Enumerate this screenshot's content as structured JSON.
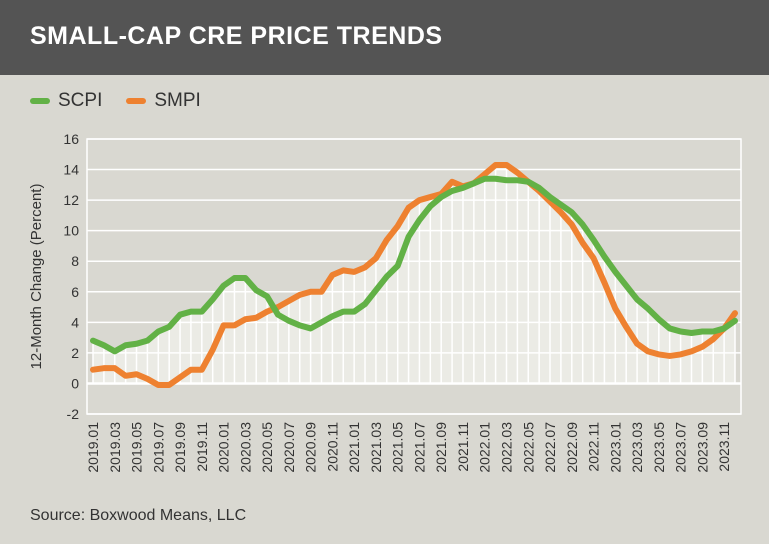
{
  "header": {
    "title": "SMALL-CAP CRE PRICE TRENDS"
  },
  "source": "Source: Boxwood Means, LLC",
  "chart_data": {
    "type": "line",
    "title": "SMALL-CAP CRE PRICE TRENDS",
    "xlabel": "",
    "ylabel": "12-Month Change (Percent)",
    "ylim": [
      -2,
      16
    ],
    "yticks": [
      -2,
      0,
      2,
      4,
      6,
      8,
      10,
      12,
      14,
      16
    ],
    "grid": true,
    "legend": "top-left",
    "x": [
      "2019.01",
      "2019.02",
      "2019.03",
      "2019.04",
      "2019.05",
      "2019.06",
      "2019.07",
      "2019.08",
      "2019.09",
      "2019.10",
      "2019.11",
      "2019.12",
      "2020.01",
      "2020.02",
      "2020.03",
      "2020.04",
      "2020.05",
      "2020.06",
      "2020.07",
      "2020.08",
      "2020.09",
      "2020.10",
      "2020.11",
      "2020.12",
      "2021.01",
      "2021.02",
      "2021.03",
      "2021.04",
      "2021.05",
      "2021.06",
      "2021.07",
      "2021.08",
      "2021.09",
      "2021.10",
      "2021.11",
      "2021.12",
      "2022.01",
      "2022.02",
      "2022.03",
      "2022.04",
      "2022.05",
      "2022.06",
      "2022.07",
      "2022.08",
      "2022.09",
      "2022.10",
      "2022.11",
      "2022.12",
      "2023.01",
      "2023.02",
      "2023.03",
      "2023.04",
      "2023.05",
      "2023.06",
      "2023.07",
      "2023.08",
      "2023.09",
      "2023.10",
      "2023.11",
      "2023.12"
    ],
    "series": [
      {
        "name": "SCPI",
        "color": "#62b146",
        "values": [
          2.8,
          2.5,
          2.1,
          2.5,
          2.6,
          2.8,
          3.4,
          3.7,
          4.5,
          4.7,
          4.7,
          5.5,
          6.4,
          6.9,
          6.9,
          6.1,
          5.7,
          4.5,
          4.1,
          3.8,
          3.6,
          4.0,
          4.4,
          4.7,
          4.7,
          5.2,
          6.1,
          7.0,
          7.7,
          9.6,
          10.7,
          11.6,
          12.2,
          12.6,
          12.8,
          13.1,
          13.4,
          13.4,
          13.3,
          13.3,
          13.2,
          12.8,
          12.2,
          11.7,
          11.2,
          10.4,
          9.4,
          8.3,
          7.3,
          6.4,
          5.5,
          4.9,
          4.2,
          3.6,
          3.4,
          3.3,
          3.4,
          3.4,
          3.6,
          4.1
        ]
      },
      {
        "name": "SMPI",
        "color": "#ee8130",
        "values": [
          0.9,
          1.0,
          1.0,
          0.5,
          0.6,
          0.3,
          -0.1,
          -0.1,
          0.4,
          0.9,
          0.9,
          2.2,
          3.8,
          3.8,
          4.2,
          4.3,
          4.7,
          5.0,
          5.4,
          5.8,
          6.0,
          6.0,
          7.1,
          7.4,
          7.3,
          7.6,
          8.2,
          9.4,
          10.3,
          11.5,
          12.0,
          12.2,
          12.4,
          13.2,
          12.9,
          13.1,
          13.7,
          14.3,
          14.3,
          13.8,
          13.2,
          12.6,
          11.9,
          11.2,
          10.4,
          9.2,
          8.2,
          6.6,
          4.9,
          3.7,
          2.6,
          2.1,
          1.9,
          1.8,
          1.9,
          2.1,
          2.4,
          2.9,
          3.6,
          4.6
        ]
      }
    ]
  }
}
